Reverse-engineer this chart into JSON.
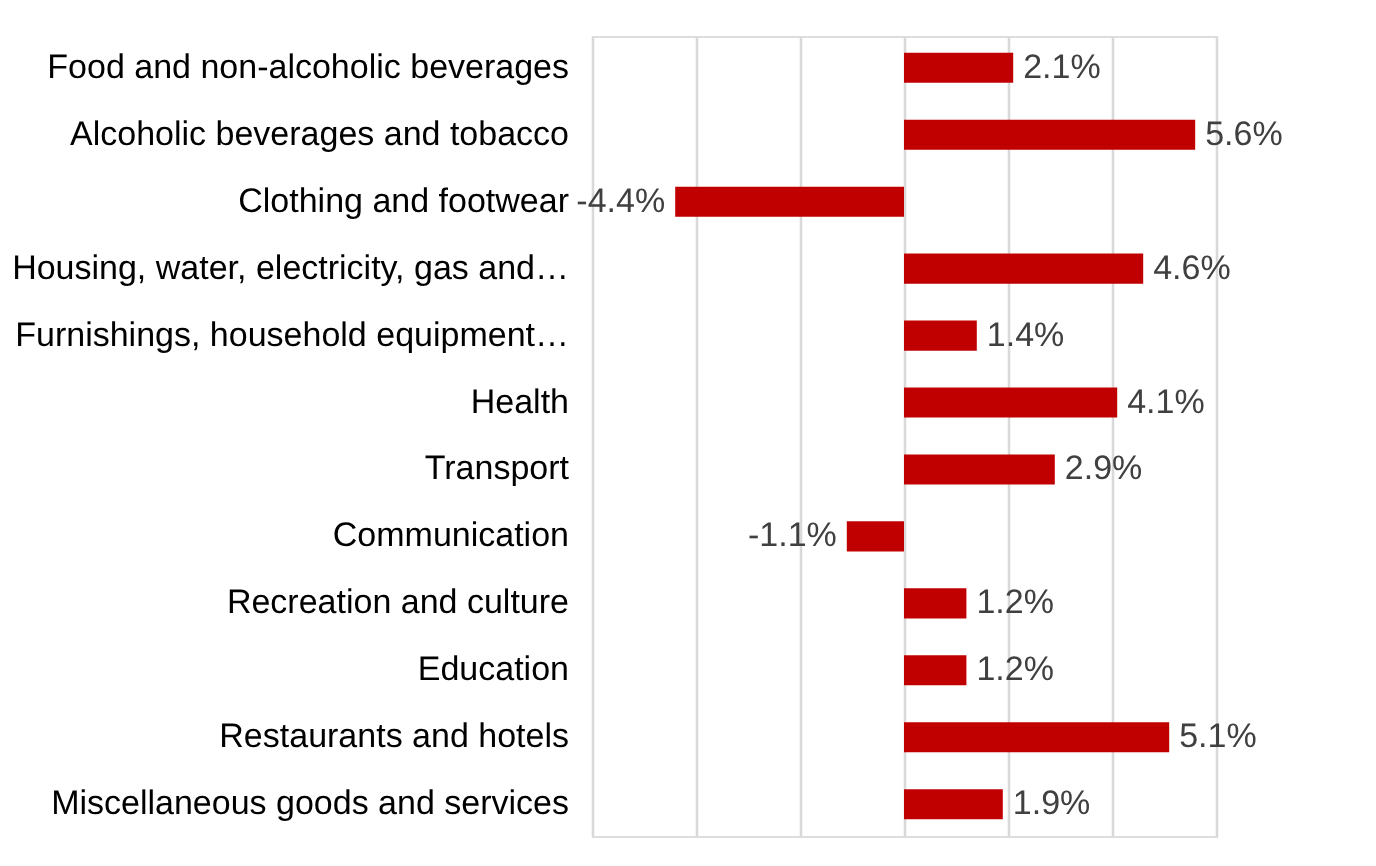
{
  "chart_data": {
    "type": "bar",
    "orientation": "horizontal",
    "categories": [
      "Food and non-alcoholic beverages",
      "Alcoholic beverages and tobacco",
      "Clothing and footwear",
      "Housing, water, electricity, gas and…",
      "Furnishings, household equipment…",
      "Health",
      "Transport",
      "Communication",
      "Recreation and culture",
      "Education",
      "Restaurants and hotels",
      "Miscellaneous goods and services"
    ],
    "values": [
      2.1,
      5.6,
      -4.4,
      4.6,
      1.4,
      4.1,
      2.9,
      -1.1,
      1.2,
      1.2,
      5.1,
      1.9
    ],
    "value_labels": [
      "2.1%",
      "5.6%",
      "-4.4%",
      "4.6%",
      "1.4%",
      "4.1%",
      "2.9%",
      "-1.1%",
      "1.2%",
      "1.2%",
      "5.1%",
      "1.9%"
    ],
    "color": "#c00000",
    "xlim": [
      -6,
      6
    ],
    "xticks": [
      {
        "value": -6,
        "label": null
      },
      {
        "value": -4,
        "label": null
      },
      {
        "value": -2,
        "label": null
      },
      {
        "value": 0,
        "label": null
      },
      {
        "value": 2,
        "label": null
      },
      {
        "value": 4,
        "label": null
      },
      {
        "value": 6,
        "label": null
      }
    ],
    "grid": "x",
    "tick_labels": "y"
  }
}
